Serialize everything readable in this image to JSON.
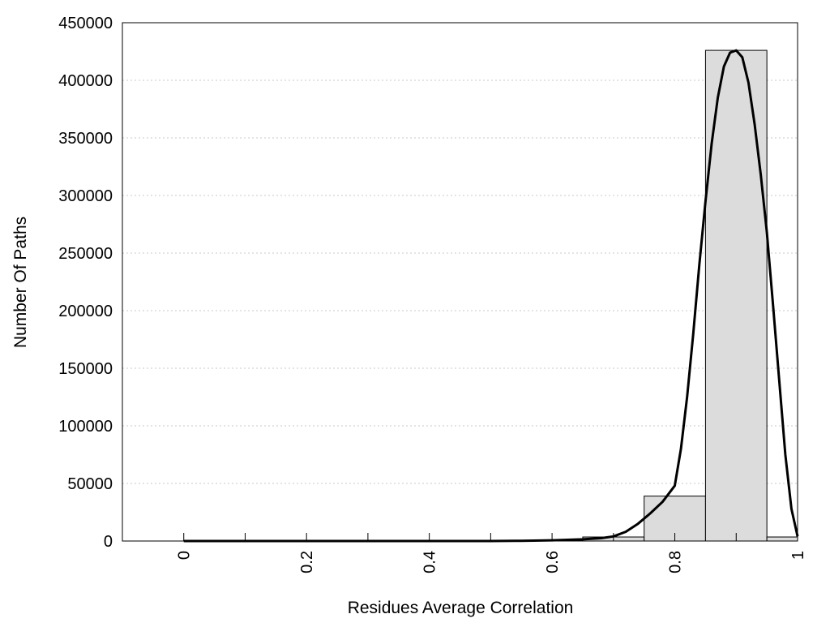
{
  "chart_data": {
    "type": "bar",
    "title": "",
    "xlabel": "Residues Average Correlation",
    "ylabel": "Number Of Paths",
    "xlim": [
      -0.1,
      1.0
    ],
    "ylim": [
      0,
      450000
    ],
    "grid": true,
    "x_ticks": [
      0,
      0.1,
      0.2,
      0.3,
      0.4,
      0.5,
      0.6,
      0.7,
      0.8,
      0.9,
      1.0
    ],
    "x_tick_labels": [
      {
        "value": 0,
        "label": "0"
      },
      {
        "value": 0.2,
        "label": "0.2"
      },
      {
        "value": 0.4,
        "label": "0.4"
      },
      {
        "value": 0.6,
        "label": "0.6"
      },
      {
        "value": 0.8,
        "label": "0.8"
      },
      {
        "value": 1.0,
        "label": "1"
      }
    ],
    "y_ticks": [
      {
        "value": 0,
        "label": "0"
      },
      {
        "value": 50000,
        "label": "50000"
      },
      {
        "value": 100000,
        "label": "100000"
      },
      {
        "value": 150000,
        "label": "150000"
      },
      {
        "value": 200000,
        "label": "200000"
      },
      {
        "value": 250000,
        "label": "250000"
      },
      {
        "value": 300000,
        "label": "300000"
      },
      {
        "value": 350000,
        "label": "350000"
      },
      {
        "value": 400000,
        "label": "400000"
      },
      {
        "value": 450000,
        "label": "450000"
      }
    ],
    "bars": [
      {
        "x0": 0.0,
        "x1": 0.1,
        "value": 0
      },
      {
        "x0": 0.1,
        "x1": 0.2,
        "value": 0
      },
      {
        "x0": 0.2,
        "x1": 0.3,
        "value": 0
      },
      {
        "x0": 0.3,
        "x1": 0.4,
        "value": 0
      },
      {
        "x0": 0.4,
        "x1": 0.5,
        "value": 0
      },
      {
        "x0": 0.5,
        "x1": 0.6,
        "value": 200
      },
      {
        "x0": 0.6,
        "x1": 0.65,
        "value": 800
      },
      {
        "x0": 0.65,
        "x1": 0.75,
        "value": 3500
      },
      {
        "x0": 0.75,
        "x1": 0.85,
        "value": 39000
      },
      {
        "x0": 0.85,
        "x1": 0.95,
        "value": 426000
      },
      {
        "x0": 0.95,
        "x1": 1.0,
        "value": 3500
      }
    ],
    "fit_curve": {
      "x": [
        0.0,
        0.1,
        0.2,
        0.3,
        0.4,
        0.5,
        0.55,
        0.6,
        0.65,
        0.68,
        0.7,
        0.72,
        0.74,
        0.76,
        0.78,
        0.8,
        0.81,
        0.82,
        0.83,
        0.84,
        0.85,
        0.86,
        0.87,
        0.88,
        0.89,
        0.9,
        0.91,
        0.92,
        0.93,
        0.94,
        0.95,
        0.96,
        0.97,
        0.98,
        0.99,
        1.0
      ],
      "y": [
        0,
        0,
        0,
        0,
        0,
        0,
        200,
        600,
        1500,
        2500,
        4000,
        8000,
        15000,
        24000,
        34000,
        48000,
        80000,
        125000,
        180000,
        240000,
        295000,
        345000,
        385000,
        412000,
        424000,
        426000,
        420000,
        398000,
        362000,
        318000,
        268000,
        205000,
        140000,
        75000,
        28000,
        4000
      ]
    },
    "colors": {
      "bar_fill": "#dcdcdc",
      "bar_stroke": "#000000",
      "curve": "#000000",
      "grid": "#c8c8c8",
      "frame": "#000000"
    }
  }
}
